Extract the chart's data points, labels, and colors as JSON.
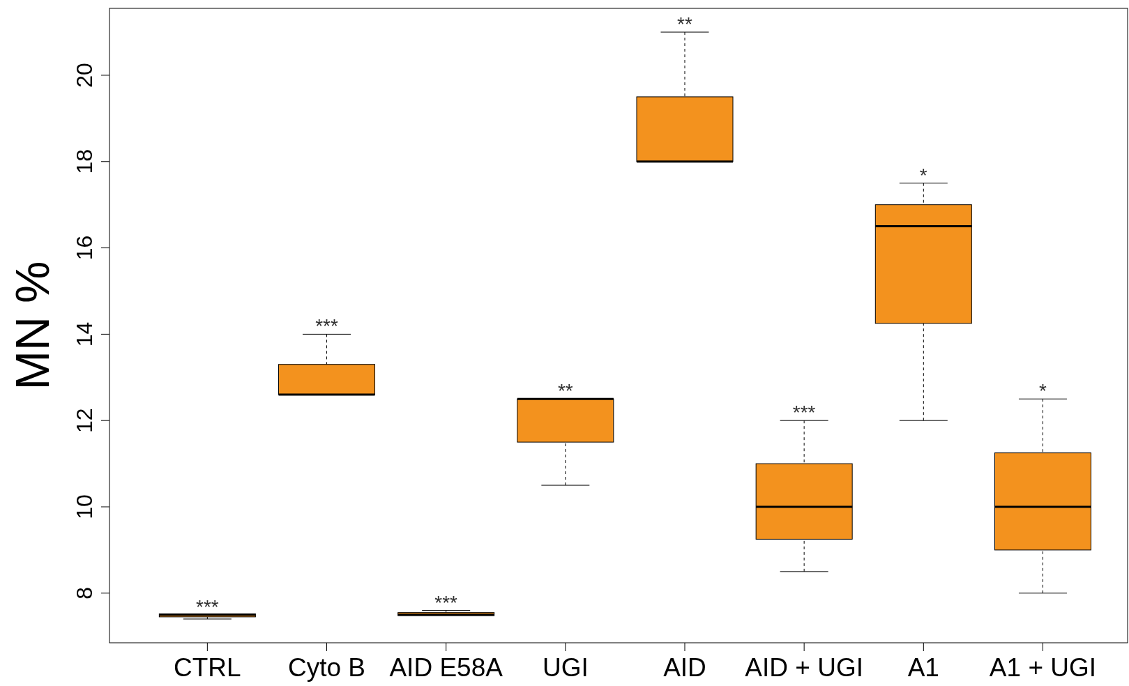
{
  "chart_data": {
    "type": "box",
    "ylabel": "MN %",
    "categories": [
      "CTRL",
      "Cyto B",
      "AID E58A",
      "UGI",
      "AID",
      "AID + UGI",
      "A1",
      "A1 + UGI"
    ],
    "color": "#f3921e",
    "boxes": [
      {
        "low": 7.4,
        "q1": 7.45,
        "median": 7.5,
        "q3": 7.52,
        "high": 7.5
      },
      {
        "low": 12.6,
        "q1": 12.6,
        "median": 12.6,
        "q3": 13.3,
        "high": 14
      },
      {
        "low": 7.5,
        "q1": 7.48,
        "median": 7.5,
        "q3": 7.55,
        "high": 7.6
      },
      {
        "low": 10.5,
        "q1": 11.5,
        "median": 12.5,
        "q3": 12.5,
        "high": 12.5
      },
      {
        "low": 18,
        "q1": 18,
        "median": 18,
        "q3": 19.5,
        "high": 21
      },
      {
        "low": 8.5,
        "q1": 9.25,
        "median": 10,
        "q3": 11,
        "high": 12
      },
      {
        "low": 12,
        "q1": 14.25,
        "median": 16.5,
        "q3": 17,
        "high": 17.5
      },
      {
        "low": 8,
        "q1": 9,
        "median": 10,
        "q3": 11.25,
        "high": 12.5
      }
    ],
    "ylim": [
      6.85,
      21.55
    ],
    "yticks": [
      8,
      10,
      12,
      14,
      16,
      18,
      20
    ],
    "grid": false,
    "annotations": [
      {
        "text": "***",
        "x": "CTRL",
        "y": 7.5
      },
      {
        "text": "***",
        "x": "Cyto B",
        "y": 14
      },
      {
        "text": "***",
        "x": "AID E58A",
        "y": 7.6
      },
      {
        "text": "**",
        "x": "UGI",
        "y": 12.5
      },
      {
        "text": "**",
        "x": "AID",
        "y": 21
      },
      {
        "text": "***",
        "x": "AID + UGI",
        "y": 12
      },
      {
        "text": "*",
        "x": "A1",
        "y": 17.5
      },
      {
        "text": "*",
        "x": "A1 + UGI",
        "y": 12.5
      }
    ]
  }
}
